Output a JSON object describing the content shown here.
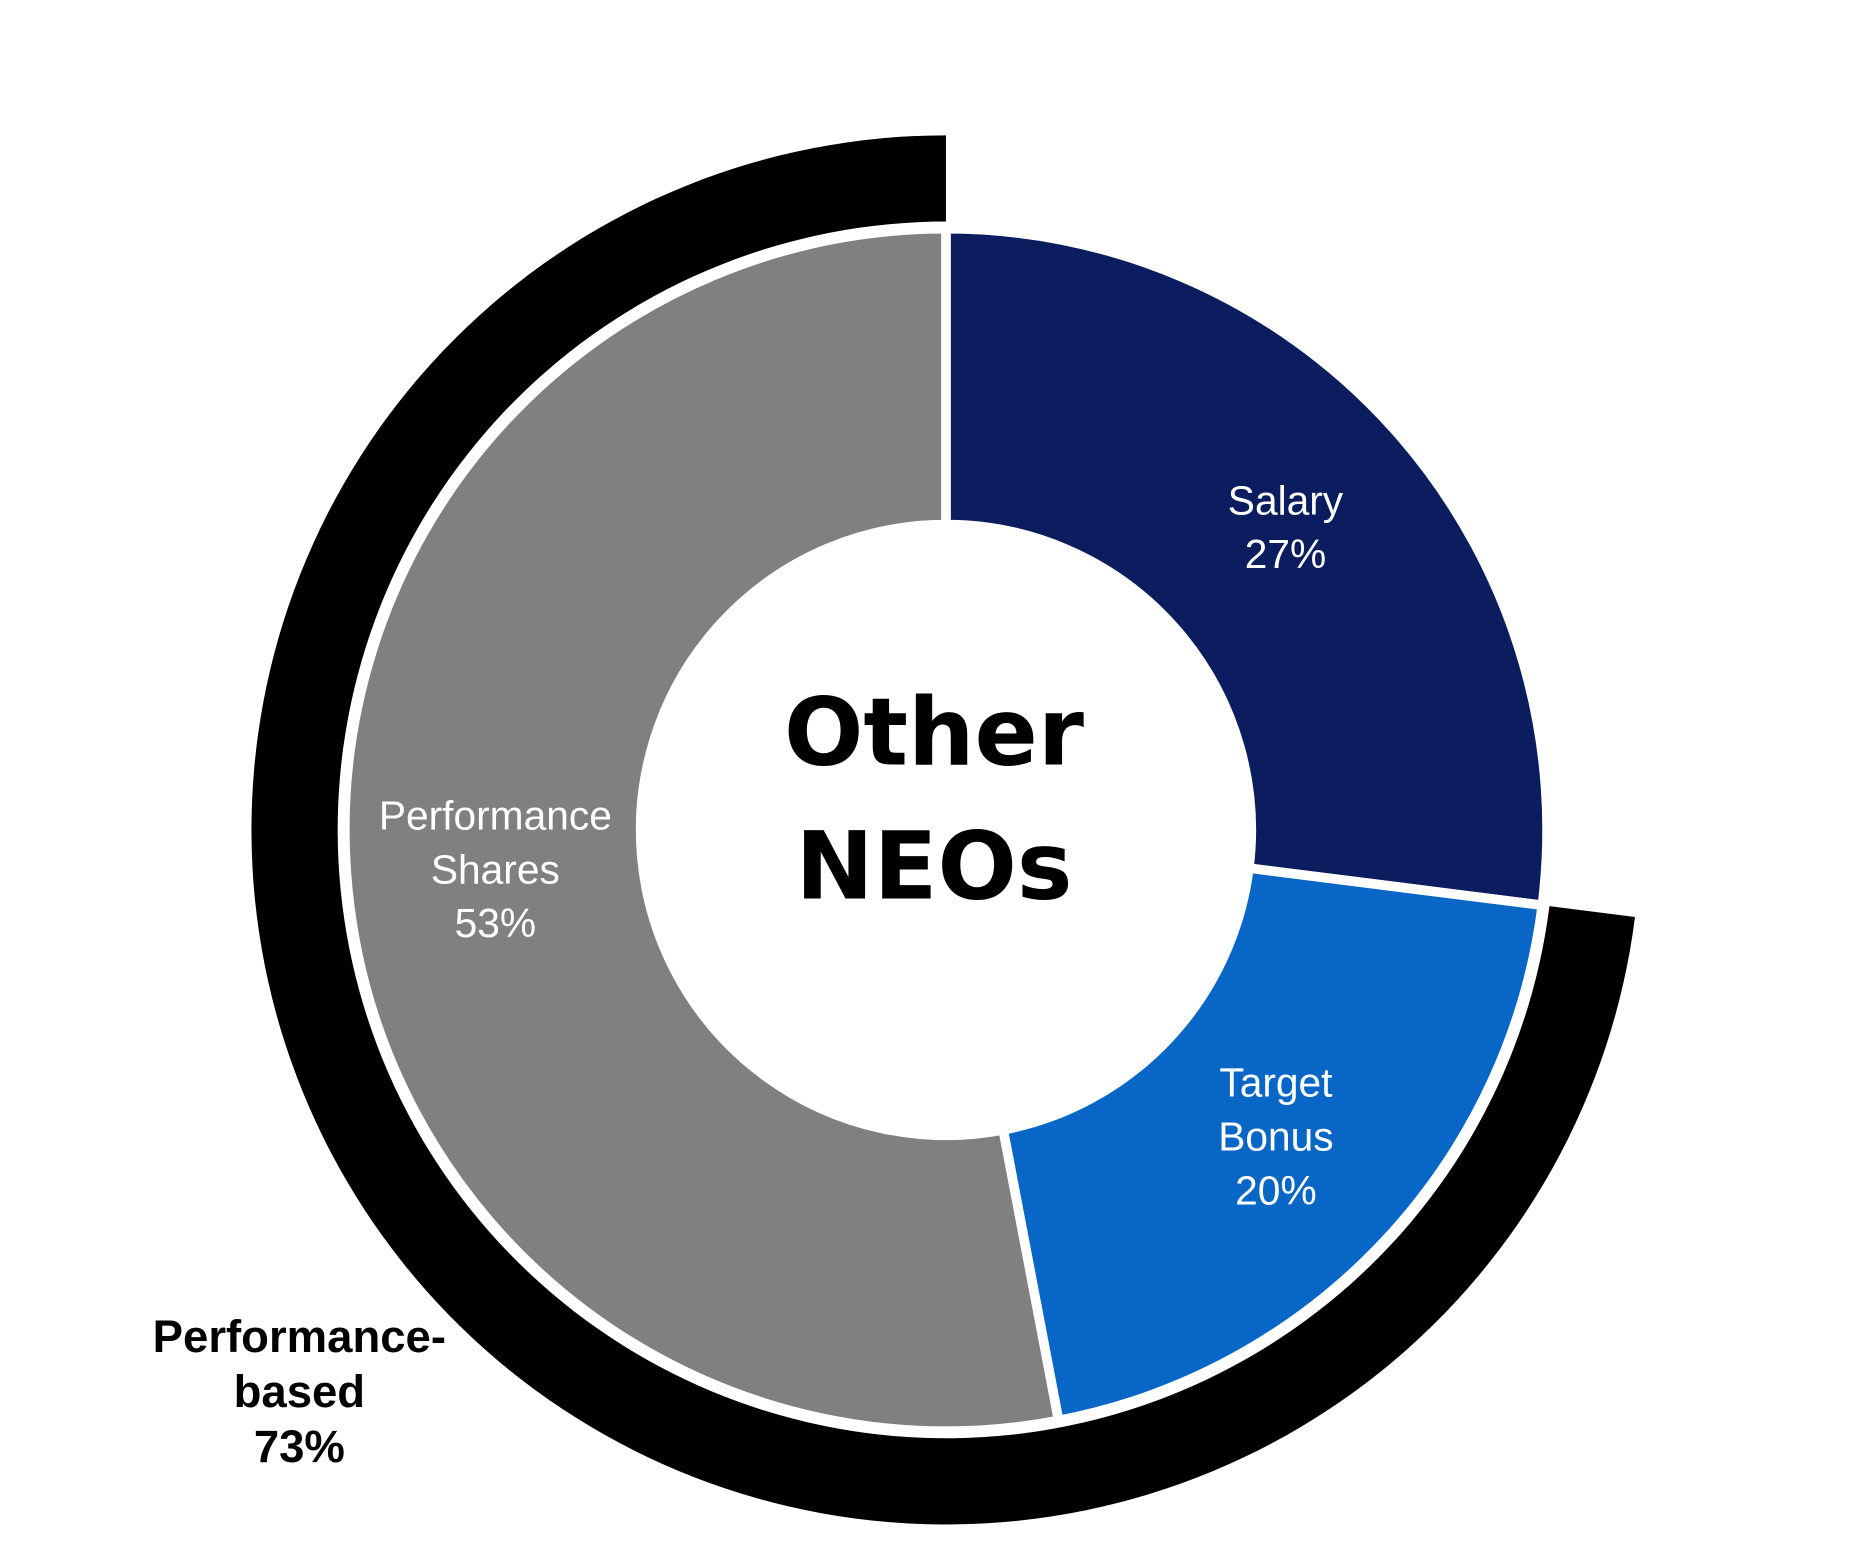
{
  "chart_data": {
    "type": "donut",
    "title": "Other NEOs",
    "categories": [
      "Salary",
      "Target Bonus",
      "Performance Shares"
    ],
    "values": [
      27,
      20,
      53
    ],
    "value_labels": [
      "27%",
      "20%",
      "53%"
    ],
    "colors": [
      "#0b1d5e",
      "#0867c6",
      "#808080"
    ],
    "outer_ring": {
      "name": "Performance-based",
      "value": 73,
      "value_label": "73%",
      "color": "#000000"
    }
  }
}
